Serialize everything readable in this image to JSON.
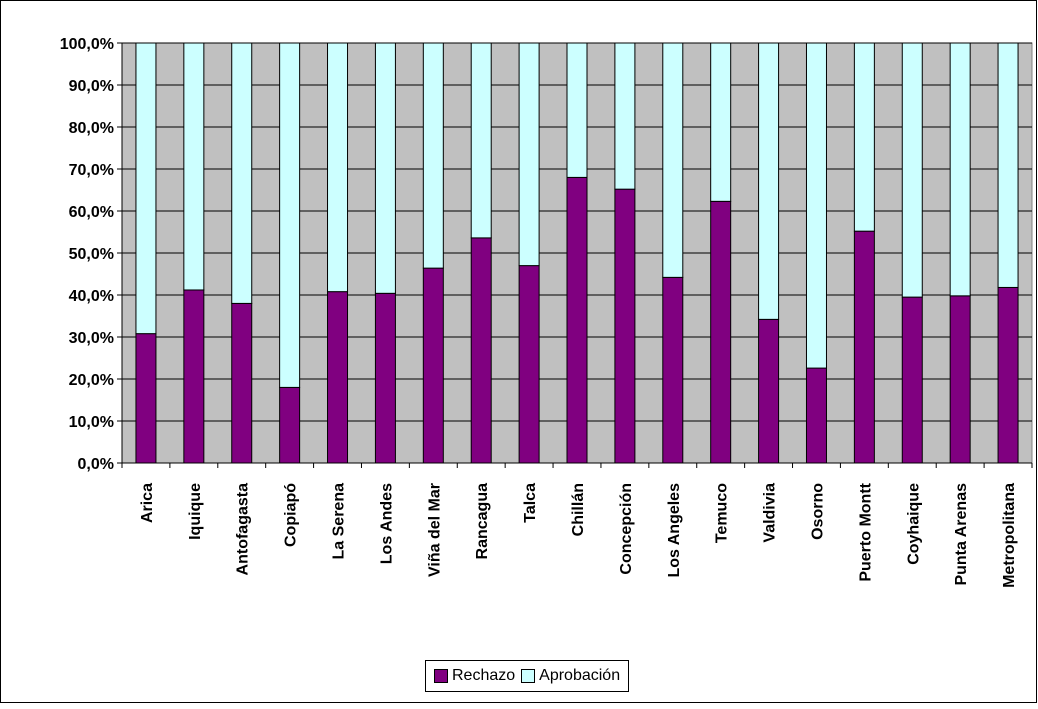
{
  "chart_data": {
    "type": "bar",
    "stacked": true,
    "categories": [
      "Arica",
      "Iquique",
      "Antofagasta",
      "Copiapó",
      "La Serena",
      "Los Andes",
      "Viña del Mar",
      "Rancagua",
      "Talca",
      "Chillán",
      "Concepción",
      "Los Angeles",
      "Temuco",
      "Valdivia",
      "Osorno",
      "Puerto Montt",
      "Coyhaique",
      "Punta Arenas",
      "Metropolitana"
    ],
    "series": [
      {
        "name": "Rechazo",
        "color": "#800080",
        "values": [
          30.8,
          41.2,
          38.0,
          18.0,
          40.8,
          40.4,
          46.4,
          53.6,
          47.0,
          68.0,
          65.2,
          44.2,
          62.3,
          34.2,
          22.6,
          55.2,
          39.5,
          39.8,
          41.8
        ]
      },
      {
        "name": "Aprobación",
        "color": "#CCFFFF",
        "values": [
          69.2,
          58.8,
          62.0,
          82.0,
          59.2,
          59.6,
          53.6,
          46.4,
          53.0,
          32.0,
          34.8,
          55.8,
          37.7,
          65.8,
          77.4,
          44.8,
          60.5,
          60.2,
          58.2
        ]
      }
    ],
    "ylim": [
      0,
      100
    ],
    "yticks": [
      "0,0%",
      "10,0%",
      "20,0%",
      "30,0%",
      "40,0%",
      "50,0%",
      "60,0%",
      "70,0%",
      "80,0%",
      "90,0%",
      "100,0%"
    ],
    "plot_background": "#C0C0C0",
    "grid": true,
    "legend_position": "bottom"
  }
}
